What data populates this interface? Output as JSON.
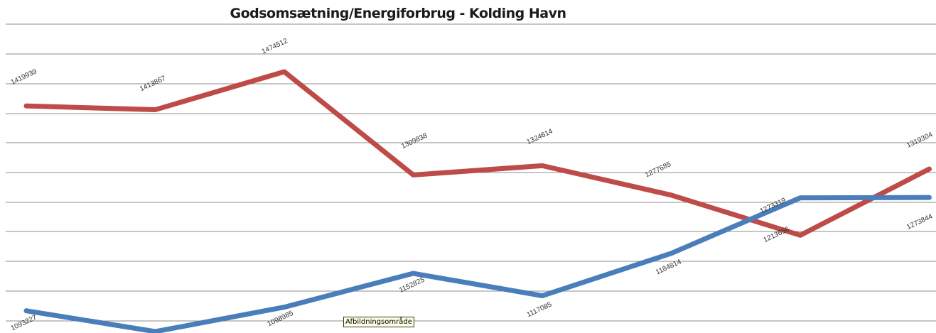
{
  "chart_data": {
    "type": "line",
    "title": "Godsomsætning/Energiforbrug - Kolding Havn",
    "series": [
      {
        "color": "#be4b48",
        "values": [
          1419939,
          1413867,
          1474512,
          1309838,
          1324614,
          1277685,
          1213656,
          1319304
        ],
        "labels": [
          "1419939",
          "1413867",
          "1474512",
          "1309838",
          "1324614",
          "1277685",
          "1213656",
          "1319304"
        ]
      },
      {
        "color": "#4a7ebb",
        "values": [
          1093227,
          1060000,
          1098985,
          1152825,
          1117085,
          1184814,
          1273319,
          1273844
        ],
        "labels": [
          "1093227",
          "",
          "1098985",
          "1152825",
          "1117085",
          "1184814",
          "1273319",
          "1273844"
        ]
      }
    ],
    "grid": true
  },
  "tooltip": "Afbildningsområde"
}
